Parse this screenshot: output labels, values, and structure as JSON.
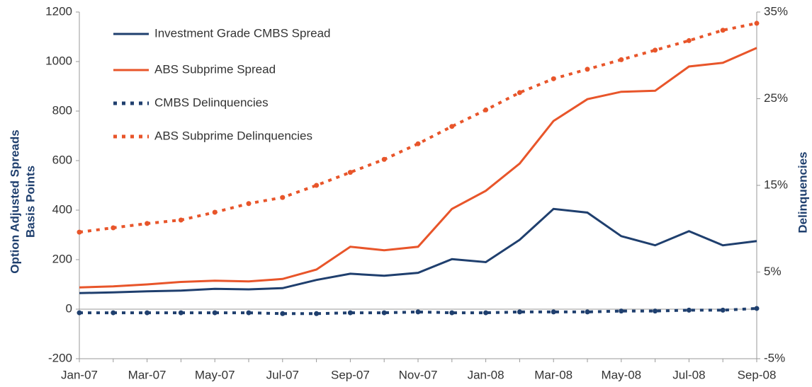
{
  "chart_data": {
    "type": "line",
    "ylabel": [
      "Option Adjusted Spreads",
      "Basis Points"
    ],
    "y2label": "Delinquencies",
    "categories": [
      "Jan-07",
      null,
      "Mar-07",
      null,
      "May-07",
      null,
      "Jul-07",
      null,
      "Sep-07",
      null,
      "Nov-07",
      null,
      "Jan-08",
      null,
      "Mar-08",
      null,
      "May-08",
      null,
      "Jul-08",
      null,
      "Sep-08"
    ],
    "ylim": [
      -200,
      1200
    ],
    "yticks": [
      -200,
      0,
      200,
      400,
      600,
      800,
      1000,
      1200
    ],
    "y2lim": [
      -5,
      35
    ],
    "y2ticks": [
      {
        "value": -5,
        "label": "-5%"
      },
      {
        "value": 5,
        "label": "5%"
      },
      {
        "value": 15,
        "label": "15%"
      },
      {
        "value": 25,
        "label": "25%"
      },
      {
        "value": 35,
        "label": "35%"
      }
    ],
    "grid": false,
    "legend": "upper left",
    "series": [
      {
        "name": "Investment Grade CMBS Spread",
        "color": "#1f3f6e",
        "style": "solid",
        "values": [
          65,
          68,
          72,
          75,
          82,
          80,
          85,
          118,
          143,
          135,
          147,
          202,
          190,
          280,
          405,
          390,
          295,
          258,
          315,
          258,
          275
        ]
      },
      {
        "name": "ABS Subprime Spread",
        "color": "#e8552a",
        "style": "solid",
        "values": [
          88,
          92,
          100,
          110,
          115,
          112,
          122,
          160,
          252,
          238,
          252,
          405,
          478,
          588,
          760,
          848,
          878,
          882,
          980,
          995,
          1055
        ]
      },
      {
        "name": "CMBS Delinquencies",
        "color": "#1f3f6e",
        "style": "dotted",
        "axis": "y2",
        "values": [
          0.3,
          0.3,
          0.3,
          0.3,
          0.3,
          0.3,
          0.2,
          0.2,
          0.3,
          0.3,
          0.4,
          0.3,
          0.3,
          0.4,
          0.4,
          0.4,
          0.5,
          0.5,
          0.6,
          0.6,
          0.8
        ]
      },
      {
        "name": "ABS Subprime Delinquencies",
        "color": "#e8552a",
        "style": "dotted",
        "axis": "y2",
        "values": [
          9.6,
          10.1,
          10.6,
          11.0,
          11.9,
          12.9,
          13.6,
          15.0,
          16.5,
          18.0,
          19.8,
          21.8,
          23.7,
          25.7,
          27.3,
          28.4,
          29.5,
          30.6,
          31.7,
          32.9,
          33.7
        ]
      }
    ]
  }
}
